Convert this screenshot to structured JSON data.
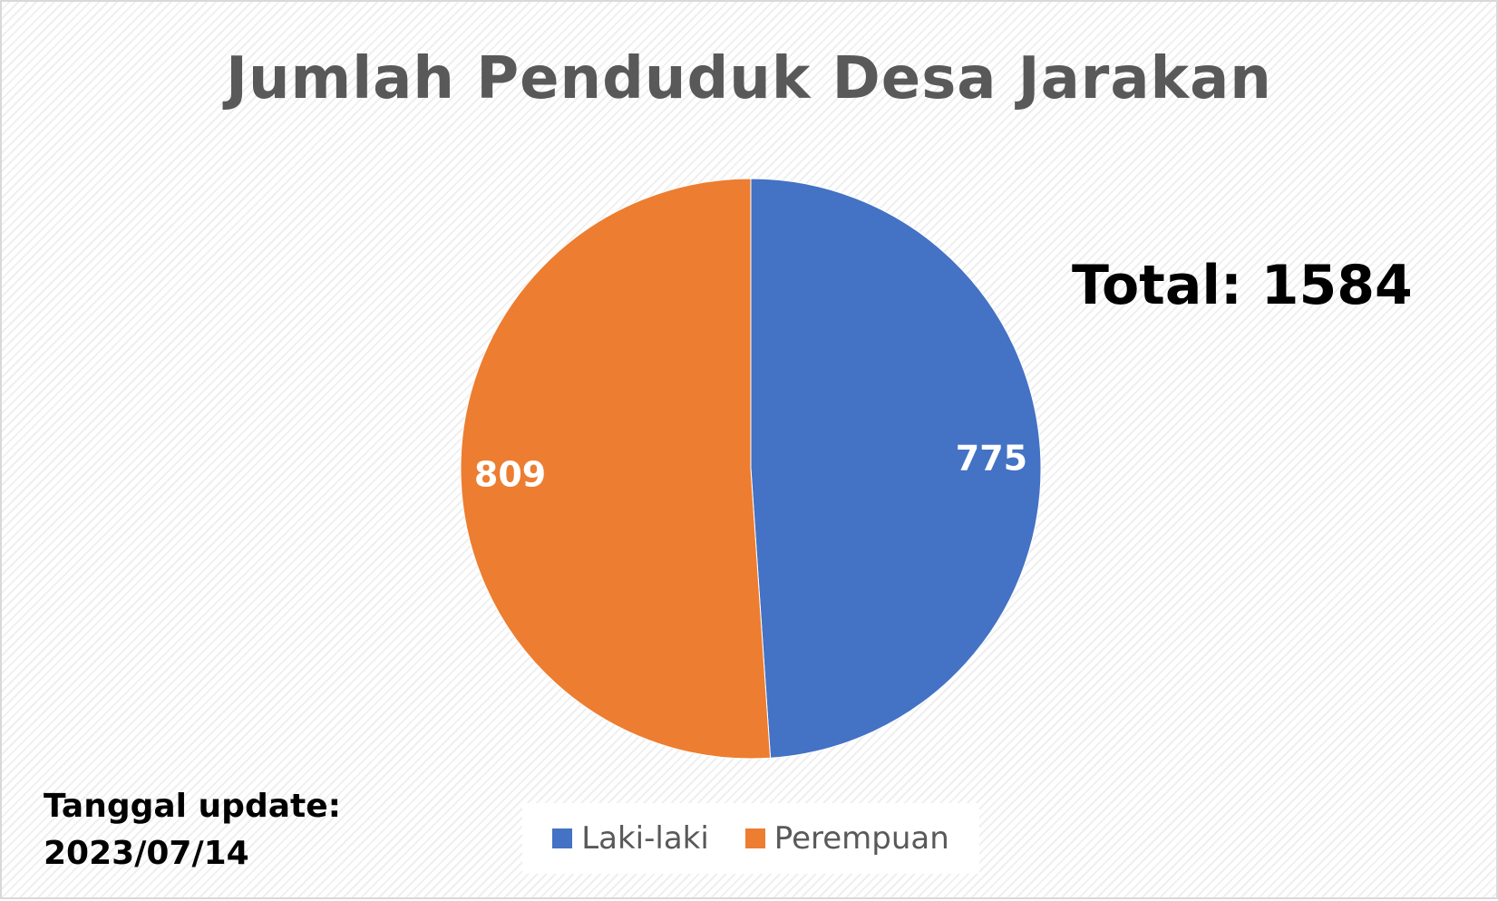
{
  "chart_data": {
    "type": "pie",
    "title": "Jumlah Penduduk Desa Jarakan",
    "categories": [
      "Laki-laki",
      "Perempuan"
    ],
    "values": [
      775,
      809
    ],
    "colors": [
      "#4472c4",
      "#ed7d31"
    ],
    "data_labels": [
      "775",
      "809"
    ],
    "legend_position": "bottom",
    "start_angle_deg": 0,
    "direction": "clockwise"
  },
  "annotations": {
    "total": "Total: 1584",
    "update_label": "Tanggal update:",
    "update_date": "2023/07/14"
  },
  "legend": {
    "items": [
      {
        "label": "Laki-laki",
        "color": "#4472c4",
        "icon": "square-swatch"
      },
      {
        "label": "Perempuan",
        "color": "#ed7d31",
        "icon": "square-swatch"
      }
    ]
  }
}
